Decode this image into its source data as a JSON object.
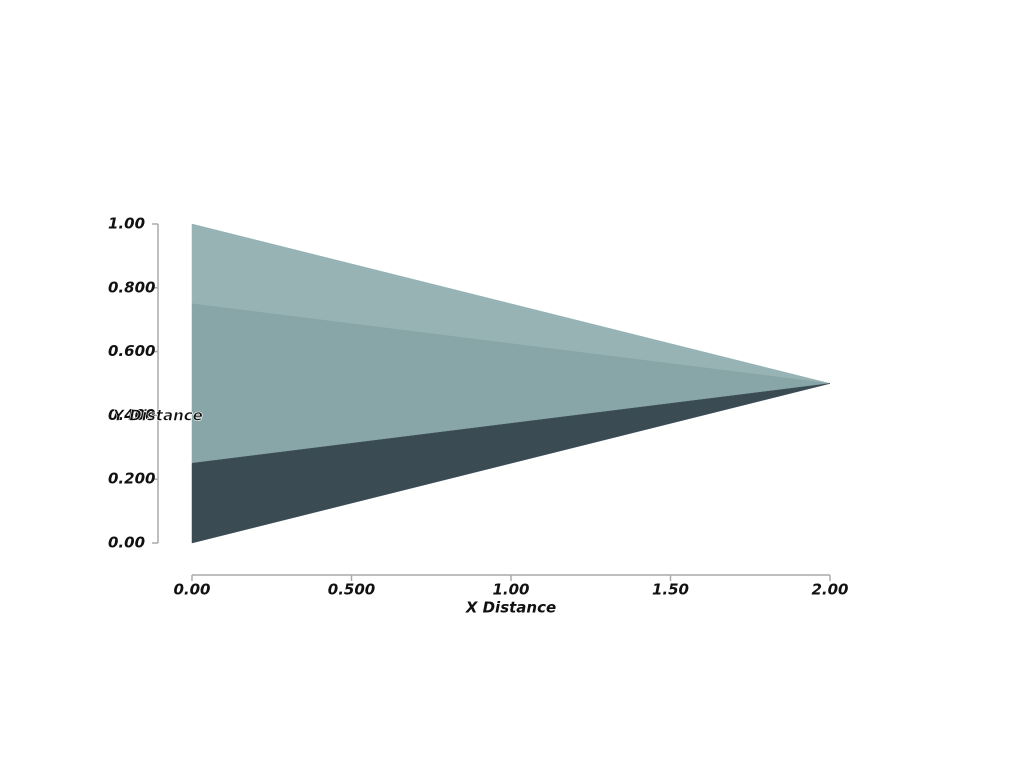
{
  "chart_data": {
    "type": "mesh",
    "xlabel": "X Distance",
    "ylabel": "Y Distance",
    "polygons": [
      {
        "x": [
          0,
          0,
          2
        ],
        "y": [
          1,
          0.75,
          0.5
        ],
        "color": "#97b3b3"
      },
      {
        "x": [
          0,
          0,
          2
        ],
        "y": [
          0.75,
          0.25,
          0.5
        ],
        "color": "#88a5a7"
      },
      {
        "x": [
          0,
          0,
          2
        ],
        "y": [
          0.25,
          0,
          0.5
        ],
        "color": "#3b4b53"
      }
    ],
    "xlim": [
      0,
      2
    ],
    "ylim": [
      0,
      1
    ],
    "xticks": [
      {
        "value": 0,
        "label": "0.00"
      },
      {
        "value": 0.5,
        "label": "0.500"
      },
      {
        "value": 1,
        "label": "1.00"
      },
      {
        "value": 1.5,
        "label": "1.50"
      },
      {
        "value": 2,
        "label": "2.00"
      }
    ],
    "yticks": [
      {
        "value": 0,
        "label": "0.00"
      },
      {
        "value": 0.2,
        "label": "0.200"
      },
      {
        "value": 0.4,
        "label": "0.400"
      },
      {
        "value": 0.6,
        "label": "0.600"
      },
      {
        "value": 0.8,
        "label": "0.800"
      },
      {
        "value": 1,
        "label": "1.00"
      }
    ]
  }
}
